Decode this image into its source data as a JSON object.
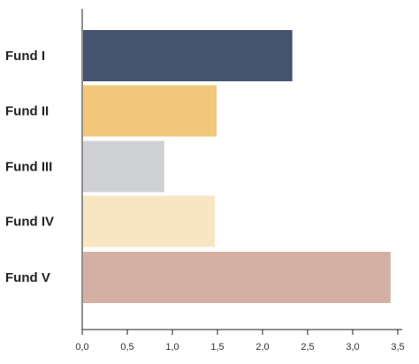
{
  "chart_data": {
    "type": "bar",
    "orientation": "horizontal",
    "categories": [
      "Fund I",
      "Fund II",
      "Fund III",
      "Fund IV",
      "Fund V"
    ],
    "values": [
      2.33,
      1.49,
      0.91,
      1.47,
      3.42
    ],
    "colors": [
      "#44546f",
      "#f2c77a",
      "#d0d1d5",
      "#f8e6c3",
      "#d4b0a4"
    ],
    "xticks": [
      "0,0",
      "0,5",
      "1,0",
      "1,5",
      "2,0",
      "2,5",
      "3,0",
      "3,5"
    ],
    "xlim": [
      0,
      3.5
    ],
    "title": "",
    "xlabel": "",
    "ylabel": "",
    "grid": false,
    "legend": "none"
  }
}
